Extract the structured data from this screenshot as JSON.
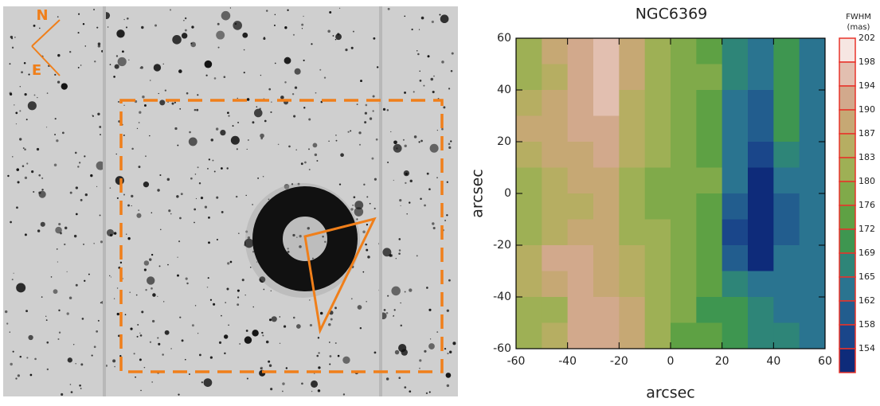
{
  "image": {
    "compass": {
      "north": "N",
      "east": "E"
    }
  },
  "chart_data": {
    "type": "contour",
    "title": "NGC6369",
    "xlabel": "arcsec",
    "ylabel": "arcsec",
    "xlim": [
      -60,
      60
    ],
    "ylim": [
      -60,
      60
    ],
    "xticks": [
      -60,
      -40,
      -20,
      0,
      20,
      40,
      60
    ],
    "yticks": [
      -60,
      -40,
      -20,
      0,
      20,
      40,
      60
    ],
    "x": [
      -55,
      -45,
      -35,
      -25,
      -15,
      -5,
      5,
      15,
      25,
      35,
      45,
      55
    ],
    "y": [
      55,
      45,
      35,
      25,
      15,
      5,
      -5,
      -15,
      -25,
      -35,
      -45,
      -55
    ],
    "z": [
      [
        186,
        190,
        196,
        198,
        190,
        183,
        180,
        178,
        170,
        168,
        172,
        166
      ],
      [
        185,
        189,
        196,
        201,
        190,
        183,
        180,
        181,
        170,
        167,
        175,
        167
      ],
      [
        188,
        191,
        196,
        200,
        189,
        183,
        180,
        179,
        168,
        163,
        174,
        168
      ],
      [
        190,
        192,
        195,
        197,
        188,
        183,
        180,
        177,
        167,
        162,
        172,
        168
      ],
      [
        189,
        191,
        193,
        195,
        187,
        183,
        181,
        178,
        166,
        158,
        170,
        168
      ],
      [
        186,
        188,
        190,
        192,
        186,
        182,
        181,
        180,
        165,
        155,
        166,
        168
      ],
      [
        185,
        187,
        189,
        191,
        186,
        182,
        180,
        178,
        164,
        154,
        164,
        167
      ],
      [
        186,
        188,
        190,
        190,
        186,
        184,
        181,
        176,
        158,
        154,
        163,
        167
      ],
      [
        188,
        194,
        196,
        191,
        187,
        186,
        182,
        176,
        162,
        157,
        165,
        168
      ],
      [
        187,
        193,
        196,
        192,
        188,
        186,
        181,
        176,
        170,
        166,
        168,
        168
      ],
      [
        184,
        186,
        194,
        195,
        190,
        185,
        180,
        175,
        173,
        169,
        168,
        167
      ],
      [
        186,
        187,
        195,
        196,
        191,
        185,
        179,
        176,
        174,
        170,
        169,
        168
      ]
    ],
    "colorbar_label": [
      "FWHM",
      "(mas)"
    ],
    "levels": [
      202,
      198,
      194,
      190,
      187,
      183,
      180,
      176,
      172,
      169,
      165,
      162,
      158,
      154
    ],
    "level_colors": [
      "#f6e6e2",
      "#e2bfb0",
      "#d2a98c",
      "#c6a874",
      "#b6ae62",
      "#9eb055",
      "#80aa4a",
      "#5ea144",
      "#3e9650",
      "#2e8578",
      "#2a7490",
      "#225d8e",
      "#1a468a",
      "#0e2b7a"
    ]
  }
}
